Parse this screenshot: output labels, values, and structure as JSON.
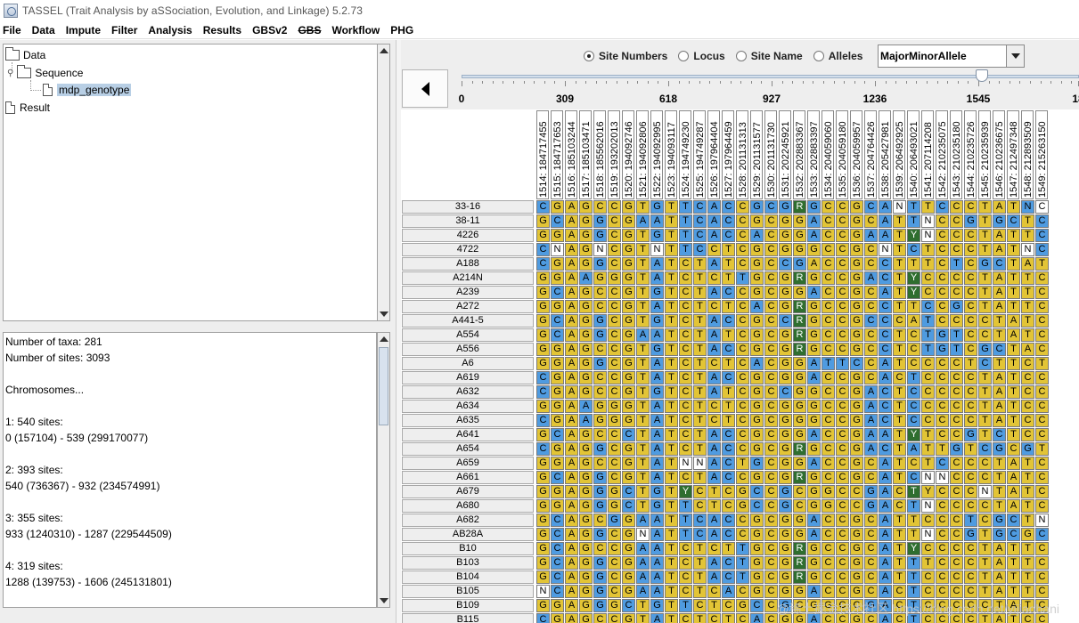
{
  "window": {
    "title": "TASSEL (Trait Analysis by aSSociation, Evolution, and Linkage) 5.2.73"
  },
  "menubar": [
    {
      "label": "File",
      "disabled": false
    },
    {
      "label": "Data",
      "disabled": false
    },
    {
      "label": "Impute",
      "disabled": false
    },
    {
      "label": "Filter",
      "disabled": false
    },
    {
      "label": "Analysis",
      "disabled": false
    },
    {
      "label": "Results",
      "disabled": false
    },
    {
      "label": "GBSv2",
      "disabled": false
    },
    {
      "label": "GBS",
      "disabled": true
    },
    {
      "label": "Workflow",
      "disabled": false
    },
    {
      "label": "PHG",
      "disabled": false
    }
  ],
  "tree": {
    "data_label": "Data",
    "sequence_label": "Sequence",
    "genotype_label": "mdp_genotype",
    "result_label": "Result"
  },
  "summary": {
    "lines": [
      "Number of taxa: 281",
      "Number of sites: 3093",
      "",
      "Chromosomes...",
      "",
      "1: 540 sites:",
      "0 (157104) - 539 (299170077)",
      "",
      "2: 393 sites:",
      "540 (736367) - 932 (234574991)",
      "",
      "3: 355 sites:",
      "933 (1240310) - 1287 (229544509)",
      "",
      "4: 319 sites:",
      "1288 (139753) - 1606 (245131801)"
    ]
  },
  "viewer": {
    "radio_options": [
      "Site Numbers",
      "Locus",
      "Site Name",
      "Alleles"
    ],
    "radio_selected": 0,
    "color_mode": "MajorMinorAllele",
    "ruler_ticks": [
      "0",
      "309",
      "618",
      "927",
      "1236",
      "1545",
      "18"
    ],
    "slider_fraction": 0.85,
    "site_headers": [
      "1514: 184717455",
      "1515: 184717653",
      "1516: 185103244",
      "1517: 185103471",
      "1518: 185562016",
      "1519: 193202013",
      "1520: 194092746",
      "1521: 194092806",
      "1522: 194092995",
      "1523: 194093117",
      "1524: 194749230",
      "1525: 194749287",
      "1526: 197964404",
      "1527: 197964459",
      "1528: 201131313",
      "1529: 201131577",
      "1530: 201131730",
      "1531: 202245921",
      "1532: 202883367",
      "1533: 202883397",
      "1534: 204059060",
      "1535: 204059180",
      "1536: 204059957",
      "1537: 204764426",
      "1538: 205427981",
      "1539: 206492925",
      "1540: 206493021",
      "1541: 207114208",
      "1542: 210235075",
      "1543: 210235180",
      "1544: 210235726",
      "1545: 210235939",
      "1546: 210236675",
      "1547: 212497348",
      "1548: 212893509",
      "1549: 215263150"
    ],
    "colors": {
      "major": "#e2c436",
      "minor": "#4f9be0",
      "het": "#2f6e2f",
      "missing": "#ffffff"
    },
    "taxa": [
      {
        "name": "33-16",
        "calls": "CGAGCCGTGTTCACCGCGRGCCGCANTTCCCTATNC",
        "cls": "BYYYYYYYBYBBBBYBBBGBYYYBBWBYBYYYYYBW"
      },
      {
        "name": "38-11",
        "calls": "GCAGGCGAATTCACCGCGGACCGCATTNCCGTGCTC",
        "cls": "YBYYBYYBBYBBBBYYYYYBYYYYBYBWYYBYBBYB"
      },
      {
        "name": "4226",
        "calls": "GGAGGCGTGTTCACCACGGACCGAATYNCCCTATTC",
        "cls": "YYYYBYYYBYBBBBYBYYYBYYYBBYGWYYYYYYYB"
      },
      {
        "name": "4722",
        "calls": "CNAGNCGTNTTCCTCGCGGGCCGCNTCTCCCTATNC",
        "cls": "BWYYWYYYWYBBYYYYYYYYYYYYWYBYYYYYYYWB"
      },
      {
        "name": "A188",
        "calls": "CGAGGCGTATCTATCGCCGACCGCCTTTCTCGCTAT",
        "cls": "BYYYBYYYBYYYBYYYYBBYYYYYBYYYYBYBBYYY"
      },
      {
        "name": "A214N",
        "calls": "GGAAGGGTATCTCTTGCGRGCCGACTYCCCCTATTC",
        "cls": "YYYBYYYYBYYYYYBYYYGYYYYBBYGYYYYYYYYY"
      },
      {
        "name": "A239",
        "calls": "GCAGCCGTGTCTACCGCGGACCGCATYCCCCTATTC",
        "cls": "YBYYYYYYBYYYBBYYYYYBYYYYBYGYYYYYYYYY"
      },
      {
        "name": "A272",
        "calls": "GGAGCCGTATCTCTCACGRGCCGCCTTCCGCTATTC",
        "cls": "YYYYYYYYBYYYYYYBYYGYYYYYBYYBYBYYYYYY"
      },
      {
        "name": "A441-5",
        "calls": "GCAGGCGTGTCTACCGCCRGCCGCCCATCCCCTATC",
        "cls": "YBYYBYYYBYYYBBYYYBGYYYYBBYYBYYYYYYYY"
      },
      {
        "name": "A554",
        "calls": "GCAGGCGAATCTATCGCGRGCCGCCTCTGTCCTATC",
        "cls": "YBYYBYYBBYYYBYYYYYGYYYYYBYYBBBYYYYYY"
      },
      {
        "name": "A556",
        "calls": "GGAGCCGTGTCTACCGCGRGCCGCCTCTGTCGCTAC",
        "cls": "YYYYYYYYBYYYBBYYYYGYYYYYBYYBBBYBBYYY"
      },
      {
        "name": "A6",
        "calls": "GGAGGCGTATCTCTCACGGATTCCATCCCCTCTTCT",
        "cls": "YYYYBYYYBYYYYYYBYYYBBBBYBYYYYYYBYYYY"
      },
      {
        "name": "A619",
        "calls": "CGAGCCGTATCTACCGCGGACCGCACTCCCCTATCC",
        "cls": "BYYYYYYYBYYYBBYYYYYBYYYYBYBYYYYYYYYY"
      },
      {
        "name": "A632",
        "calls": "CGAGCCGTGTCTATCGCCGGCCGACTCCCCCTATCC",
        "cls": "BYYYYYYYBYYYBYYYYBYYYYYBBYBYYYYYYYYY"
      },
      {
        "name": "A634",
        "calls": "GGAAGGGTATCTCTCGCGGGCCGACTCCCCCTATCC",
        "cls": "YYYBYYYYBYYYYYYYYYYYYYYBBYBYYYYYYYYY"
      },
      {
        "name": "A635",
        "calls": "CGAAGGGTATCTCTCGCGGGCCGACTCCCCCTATCC",
        "cls": "BYYBYYYYBYYYYYYYYYYYYYYBBYBYYYYYYYYY"
      },
      {
        "name": "A641",
        "calls": "GCAGCCCTATCTACCGCGGACCGAATYTCCGTCTCC",
        "cls": "YBYYYYBYBYYYBBYYYYYBYYYBBYGYYYBYBYYY"
      },
      {
        "name": "A654",
        "calls": "CGAGGCGTATCTACCGCGRGCCGACTATTGTCGCGT",
        "cls": "BYYYBYYYBYYYBBYYYYGYYYYBBYBYYBYBBYBY"
      },
      {
        "name": "A659",
        "calls": "GGAGCCGTATNNACTGCGGACCGCATCTCCCCTATC",
        "cls": "YYYYYYYYBYWWBBYBYYYBYYYYBYYYBYYYYYYY"
      },
      {
        "name": "A661",
        "calls": "GCAGGCGTATCTACCGCGRGCCGCATCNNCCCTATC",
        "cls": "YBYYBYYYBYYYBBYYYYGYYYYYBYBWWYYYYYYY"
      },
      {
        "name": "A679",
        "calls": "GGAGGGCTGTYCTCGCCGCGGCCGACTYCCCNTATC",
        "cls": "YYYYBYBYBYGYYYYBYBYYYYYBBYGYYYYWYYYY"
      },
      {
        "name": "A680",
        "calls": "GGAGGGCTGTTCTCGCCGCGGCCGACTNCCCCTATC",
        "cls": "YYYYBYBYBYBYYYYBYBYYYYYBBYBWYYYYYYYY"
      },
      {
        "name": "A682",
        "calls": "GCAGCGGAATTCACCGCGGACCGCATTCCCTCGCTN",
        "cls": "YBYYYBYBBYBBBBYYYYYBYYYYBYYYYYBYBBYW"
      },
      {
        "name": "AB28A",
        "calls": "GCAGGCGNATTCACCGCGGACCGCATTNCCGTGCGC",
        "cls": "YBYYBYYWBYBBBBYYYYYBYYYYBYYWYYBYBBYB"
      },
      {
        "name": "B10",
        "calls": "GCAGCCGAATCTCTTGCGRGCCGCATYCCCCTATTC",
        "cls": "YBYYYYYBBYYYYYBYYYGYYYYYBYGYYYYYYYYY"
      },
      {
        "name": "B103",
        "calls": "GCAGGCGAATCTACTGCGRGCCGCATTTCCCTATTC",
        "cls": "YBYYBYYBBYYYBBBYYYGYYYYYBYBYYYYYYYYY"
      },
      {
        "name": "B104",
        "calls": "GCAGGCGAATCTACTGCGRGCCGCATTCCCCTATTC",
        "cls": "YBYYBYYBBYYYBBBYYYGYYYYYBYBYYYYYYYYY"
      },
      {
        "name": "B105",
        "calls": "NCAGGCGAATCTCACGCGGACCGCACTCCCCTATTC",
        "cls": "WBYYBYYBBYYYYBYYYYYBYYYYBYBYYYYYYYYY"
      },
      {
        "name": "B109",
        "calls": "GGAGGGCTGTTCTCGCCGCGGCCGACTCCCCCTATC",
        "cls": "YYYYBYBYBYBYYYYBYBYYYYYBBYBYYYYYYYYY"
      },
      {
        "name": "B115",
        "calls": "CGAGCCGTATCTCTCACGGACCGCACTCCCCTATCC",
        "cls": "BYYYYYYYBYYYYYYBYYYBYYYYBYBYYYYYYYYY"
      }
    ]
  },
  "watermark": "@稀土掘金技术社区 https://blog.csdn.net/yijiaobani"
}
